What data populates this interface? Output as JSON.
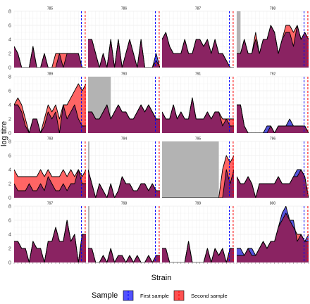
{
  "chart_data": {
    "type": "area",
    "xlabel": "Strain",
    "ylabel": "log titre",
    "ylim": [
      0,
      8
    ],
    "yticks": [
      0,
      2,
      4,
      6,
      8
    ],
    "grid": true,
    "legend": {
      "position": "bottom",
      "title": "Sample",
      "entries": [
        {
          "label": "First sample",
          "color": "#3333ff"
        },
        {
          "label": "Second sample",
          "color": "#ff3333"
        }
      ]
    },
    "colors": {
      "first_fill": "#2b2bd6",
      "second_fill": "#ff4a4a",
      "overlap_fill": "#8a2362",
      "first_line": "#0000ff",
      "second_line": "#ff0000",
      "grey_band": "#b3b3b3"
    },
    "n_strains": 20,
    "panels": [
      {
        "id": "785",
        "first": [
          3,
          2,
          0,
          0,
          0,
          3,
          0,
          0,
          2,
          0,
          0,
          0,
          2,
          0,
          2,
          2,
          2,
          2,
          0,
          0
        ],
        "second": [
          3,
          2,
          0,
          0,
          0,
          3,
          0,
          0,
          2,
          0,
          0,
          2,
          2,
          2,
          2,
          2,
          2,
          2,
          0,
          0
        ],
        "grey": null,
        "vline_first": 17.8,
        "vline_second": 18.8
      },
      {
        "id": "786",
        "first": [
          4,
          4,
          2,
          0,
          2,
          0,
          4,
          0,
          4,
          0,
          2,
          4,
          2,
          0,
          4,
          0,
          0,
          0,
          2,
          0
        ],
        "second": [
          4,
          4,
          2,
          0,
          2,
          0,
          4,
          0,
          4,
          0,
          2,
          4,
          2,
          0,
          4,
          0,
          0,
          0,
          1,
          0
        ],
        "grey": null,
        "vline_first": 17.8,
        "vline_second": 18.8
      },
      {
        "id": "787",
        "first": [
          4,
          5,
          3,
          2,
          2,
          2,
          4,
          2,
          2,
          4,
          4,
          3,
          4,
          2,
          4,
          2,
          2,
          1,
          0,
          0
        ],
        "second": [
          4,
          5,
          3,
          2,
          2,
          2,
          4,
          2,
          2,
          4,
          4,
          3,
          4,
          2,
          4,
          2,
          2,
          1,
          0,
          0
        ],
        "grey": null,
        "vline_first": 17.8,
        "vline_second": 18.8
      },
      {
        "id": "788",
        "first": [
          2,
          2,
          4,
          2,
          2,
          4,
          2,
          4,
          4,
          6,
          5,
          2,
          4,
          5,
          5,
          3,
          6,
          4,
          5,
          4
        ],
        "second": [
          2,
          2,
          4,
          2,
          2,
          5,
          2,
          4,
          4,
          6,
          5,
          2,
          4,
          6,
          6,
          5,
          6,
          4,
          5,
          4
        ],
        "grey": [
          0,
          1
        ],
        "vline_first": 17.8,
        "vline_second": 18.8
      },
      {
        "id": "789",
        "first": [
          4,
          4,
          3,
          1,
          0,
          2,
          2,
          0,
          1,
          3,
          2,
          3,
          0,
          4,
          2,
          3,
          4,
          2,
          1,
          1
        ],
        "second": [
          4,
          5,
          4,
          2,
          0,
          2,
          2,
          0,
          2,
          4,
          3,
          4,
          2,
          4,
          4,
          5,
          6,
          7,
          6,
          7
        ],
        "grey": null,
        "vline_first": 17.8,
        "vline_second": 18.8
      },
      {
        "id": "790",
        "first": [
          3,
          3,
          2,
          2,
          3,
          4,
          2,
          3,
          4,
          3,
          3,
          2,
          2,
          3,
          4,
          3,
          4,
          3,
          2,
          2
        ],
        "second": [
          3,
          3,
          2,
          2,
          3,
          4,
          2,
          3,
          4,
          3,
          3,
          2,
          2,
          3,
          4,
          3,
          4,
          3,
          2,
          2
        ],
        "grey": [
          0,
          6
        ],
        "vline_first": 17.8,
        "vline_second": 18.8
      },
      {
        "id": "791",
        "first": [
          3,
          2,
          2,
          4,
          2,
          3,
          2,
          2,
          5,
          2,
          2,
          2,
          3,
          2,
          3,
          3,
          1,
          2,
          1,
          1
        ],
        "second": [
          3,
          2,
          2,
          4,
          2,
          3,
          2,
          2,
          5,
          2,
          2,
          2,
          3,
          2,
          3,
          3,
          2,
          2,
          2,
          2
        ],
        "grey": null,
        "vline_first": 17.8,
        "vline_second": 18.8
      },
      {
        "id": "792",
        "first": [
          4,
          4,
          1,
          0,
          0,
          0,
          0,
          0,
          1,
          1,
          0,
          1,
          1,
          1,
          2,
          1,
          1,
          1,
          1,
          0
        ],
        "second": [
          4,
          4,
          1,
          0,
          0,
          0,
          0,
          0,
          0,
          1,
          0,
          1,
          1,
          1,
          1,
          1,
          1,
          1,
          1,
          0
        ],
        "grey": null,
        "vline_first": 17.8,
        "vline_second": 18.8
      },
      {
        "id": "793",
        "first": [
          2,
          1,
          1,
          1,
          2,
          1,
          1,
          2,
          1,
          3,
          2,
          1,
          1,
          2,
          1,
          2,
          2,
          4,
          2,
          2
        ],
        "second": [
          4,
          3,
          3,
          3,
          3,
          3,
          3,
          4,
          3,
          4,
          3,
          3,
          3,
          4,
          3,
          4,
          3,
          4,
          3,
          4
        ],
        "grey": null,
        "vline_first": 17.8,
        "vline_second": 18.8
      },
      {
        "id": "794",
        "first": [
          4,
          2,
          0,
          2,
          1,
          0,
          2,
          0,
          1,
          3,
          2,
          2,
          1,
          1,
          2,
          2,
          1,
          2,
          1,
          1
        ],
        "second": [
          4,
          2,
          0,
          2,
          1,
          0,
          2,
          0,
          1,
          3,
          2,
          2,
          1,
          1,
          2,
          2,
          1,
          2,
          1,
          1
        ],
        "grey": [
          0,
          0.3
        ],
        "vline_first": 17.8,
        "vline_second": 18.8
      },
      {
        "id": "795",
        "first": [
          0,
          0,
          0,
          0,
          0,
          0,
          0,
          0,
          0,
          0,
          0,
          0,
          0,
          0,
          0,
          0,
          0,
          4,
          2,
          4
        ],
        "second": [
          0,
          0,
          0,
          0,
          0,
          0,
          0,
          0,
          0,
          0,
          0,
          0,
          0,
          0,
          0,
          0,
          4,
          6,
          5,
          6
        ],
        "grey": [
          0,
          15
        ],
        "vline_first": 17.8,
        "vline_second": 18.8
      },
      {
        "id": "796",
        "first": [
          3,
          2,
          2,
          3,
          2,
          0,
          2,
          2,
          2,
          2,
          2,
          3,
          2,
          2,
          2,
          3,
          4,
          4,
          3,
          0
        ],
        "second": [
          3,
          2,
          2,
          3,
          2,
          0,
          2,
          2,
          2,
          2,
          2,
          3,
          2,
          2,
          2,
          3,
          3,
          4,
          3,
          0
        ],
        "grey": null,
        "vline_first": 17.8,
        "vline_second": 18.8
      },
      {
        "id": "797",
        "first": [
          3,
          3,
          2,
          2,
          0,
          3,
          2,
          2,
          0,
          3,
          3,
          5,
          3,
          3,
          6,
          3,
          4,
          0,
          4,
          4
        ],
        "second": [
          3,
          3,
          2,
          2,
          0,
          3,
          2,
          2,
          0,
          3,
          3,
          5,
          3,
          3,
          6,
          3,
          4,
          0,
          4,
          4
        ],
        "grey": null,
        "vline_first": 17.8,
        "vline_second": 18.8
      },
      {
        "id": "798",
        "first": [
          2,
          2,
          0,
          0,
          1,
          0,
          2,
          0,
          1,
          1,
          0,
          1,
          0,
          1,
          0,
          0,
          1,
          0,
          1,
          1
        ],
        "second": [
          2,
          2,
          0,
          0,
          1,
          0,
          2,
          0,
          1,
          1,
          0,
          1,
          0,
          1,
          0,
          0,
          1,
          0,
          1,
          1
        ],
        "grey": [
          0,
          0.3
        ],
        "vline_first": 17.8,
        "vline_second": 18.8
      },
      {
        "id": "799",
        "first": [
          2,
          2,
          0,
          0,
          0,
          0,
          0,
          3,
          0,
          0,
          0,
          0,
          2,
          0,
          2,
          1,
          2,
          0,
          2,
          2
        ],
        "second": [
          2,
          2,
          0,
          0,
          0,
          0,
          0,
          3,
          0,
          0,
          0,
          0,
          2,
          0,
          2,
          1,
          2,
          0,
          2,
          2
        ],
        "grey": null,
        "vline_first": 17.8,
        "vline_second": 18.8
      },
      {
        "id": "800",
        "first": [
          2,
          2,
          1,
          2,
          2,
          1,
          2,
          3,
          2,
          3,
          3,
          5,
          7,
          8,
          6,
          6,
          3,
          4,
          3,
          4
        ],
        "second": [
          1,
          1,
          1,
          2,
          1,
          1,
          2,
          3,
          2,
          3,
          3,
          5,
          6,
          7,
          6,
          5,
          4,
          4,
          3,
          3
        ],
        "grey": null,
        "vline_first": 17.8,
        "vline_second": 18.8
      }
    ]
  }
}
